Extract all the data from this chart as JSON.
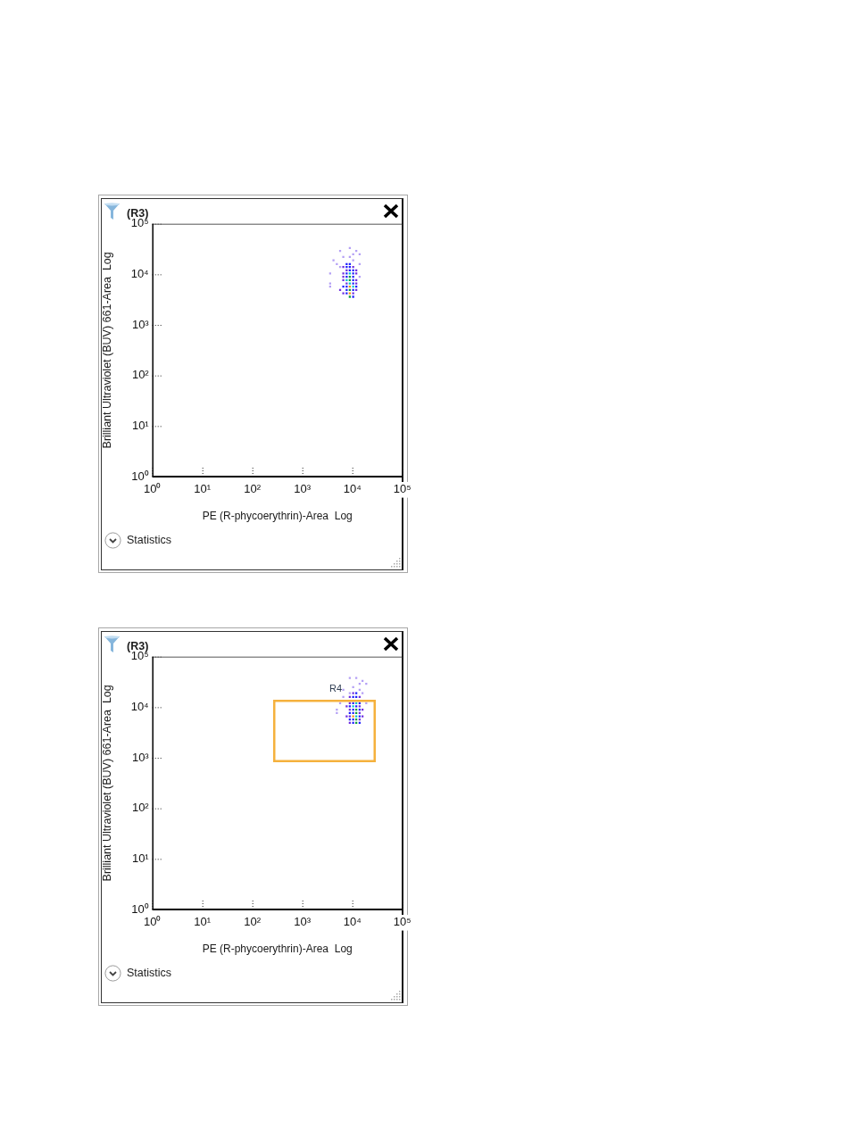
{
  "chart_data": [
    {
      "type": "scatter",
      "title": "(R3)",
      "xlabel": "PE (R-phycoerythrin)-Area  Log",
      "ylabel": "Brilliant Ultraviolet (BUV) 661-Area  Log",
      "log": "xy",
      "marker": "square",
      "xlim": [
        1,
        100000
      ],
      "ylim": [
        1,
        100000
      ],
      "xticks": [
        {
          "value": 1,
          "label": "10⁰"
        },
        {
          "value": 10,
          "label": "10¹"
        },
        {
          "value": 100,
          "label": "10²"
        },
        {
          "value": 1000,
          "label": "10³"
        },
        {
          "value": 10000,
          "label": "10⁴"
        },
        {
          "value": 100000,
          "label": "10⁵"
        }
      ],
      "yticks": [
        {
          "value": 1,
          "label": "10⁰"
        },
        {
          "value": 10,
          "label": "10¹"
        },
        {
          "value": 100,
          "label": "10²"
        },
        {
          "value": 1000,
          "label": "10³"
        },
        {
          "value": 10000,
          "label": "10⁴"
        },
        {
          "value": 100000,
          "label": "10⁵"
        }
      ],
      "annotations": [
        "Statistics"
      ],
      "series": [
        {
          "color": "#b4a0f5",
          "x": [
            8900,
            5700,
            12000,
            14000,
            10400,
            6600,
            8900,
            4200,
            10400,
            4900,
            14000,
            5700,
            3600,
            14000,
            3600,
            3600
          ],
          "values": [
            33000,
            29000,
            29000,
            25000,
            25000,
            22000,
            22000,
            19000,
            19000,
            16000,
            16000,
            14000,
            10400,
            8900,
            6600,
            5700
          ]
        },
        {
          "color": "#7030e0",
          "x": [
            6600,
            10400,
            7700,
            12000,
            6600,
            12000,
            6600,
            12000,
            6600,
            7700,
            12000,
            5700,
            10400,
            12000,
            6600
          ],
          "values": [
            14000,
            14000,
            12000,
            12000,
            10400,
            10400,
            8900,
            7700,
            7700,
            6600,
            6600,
            4900,
            4200,
            4900,
            4200
          ]
        },
        {
          "color": "#2020ff",
          "x": [
            7700,
            7700,
            7700,
            7700,
            7700,
            7700,
            7700,
            8900,
            8900,
            8900,
            10400,
            10400,
            10400,
            10400,
            10400,
            10400,
            10400,
            6600,
            12000
          ],
          "values": [
            16000,
            14000,
            10400,
            8900,
            5700,
            4900,
            4200,
            16000,
            14000,
            12000,
            12000,
            10400,
            8900,
            7700,
            6600,
            4900,
            3600,
            5700,
            5700
          ]
        },
        {
          "color": "#00c0d0",
          "x": [
            7700,
            8900,
            8900,
            10400
          ],
          "values": [
            7700,
            10400,
            6600,
            5700
          ]
        },
        {
          "color": "#10a040",
          "x": [
            8900,
            8900,
            8900,
            8900
          ],
          "values": [
            8900,
            7700,
            4900,
            3600
          ]
        },
        {
          "color": "#ff8c1a",
          "x": [
            8900,
            8900
          ],
          "values": [
            4200,
            5700
          ]
        }
      ]
    },
    {
      "type": "scatter",
      "title": "(R3)",
      "xlabel": "PE (R-phycoerythrin)-Area  Log",
      "ylabel": "Brilliant Ultraviolet (BUV) 661-Area  Log",
      "log": "xy",
      "marker": "square",
      "xlim": [
        1,
        100000
      ],
      "ylim": [
        1,
        100000
      ],
      "xticks": [
        {
          "value": 1,
          "label": "10⁰"
        },
        {
          "value": 10,
          "label": "10¹"
        },
        {
          "value": 100,
          "label": "10²"
        },
        {
          "value": 1000,
          "label": "10³"
        },
        {
          "value": 10000,
          "label": "10⁴"
        },
        {
          "value": 100000,
          "label": "10⁵"
        }
      ],
      "yticks": [
        {
          "value": 1,
          "label": "10⁰"
        },
        {
          "value": 10,
          "label": "10¹"
        },
        {
          "value": 100,
          "label": "10²"
        },
        {
          "value": 1000,
          "label": "10³"
        },
        {
          "value": 10000,
          "label": "10⁴"
        },
        {
          "value": 100000,
          "label": "10⁵"
        }
      ],
      "annotations": [
        "Statistics",
        "R4"
      ],
      "series": [
        {
          "color": "#b4a0f5",
          "x": [
            8900,
            12000,
            16000,
            19000,
            14000,
            6600,
            10400,
            14000,
            8900,
            16000,
            6600,
            5700,
            19000,
            4900,
            4900
          ],
          "values": [
            38000,
            38000,
            33000,
            29000,
            29000,
            22000,
            25000,
            22000,
            19000,
            19000,
            16000,
            12000,
            12000,
            8900,
            7700
          ]
        },
        {
          "color": "#7030e0",
          "x": [
            10400,
            14000,
            14000,
            14000,
            14000,
            8900,
            8900,
            8900,
            8900,
            8900,
            16000,
            16000,
            7700,
            7700
          ],
          "values": [
            19000,
            16000,
            10400,
            7700,
            5700,
            16000,
            12000,
            8900,
            6600,
            4900,
            8900,
            6600,
            10400,
            6600
          ]
        },
        {
          "color": "#2020ff",
          "x": [
            12000,
            12000,
            12000,
            10400,
            10400,
            10400,
            10400,
            10400,
            10400,
            14000,
            14000,
            14000,
            14000,
            8900,
            8900,
            8900
          ],
          "values": [
            19000,
            16000,
            10400,
            16000,
            12000,
            8900,
            7700,
            5700,
            4900,
            12000,
            8900,
            6600,
            4900,
            10400,
            7700,
            5700
          ]
        },
        {
          "color": "#00c0d0",
          "x": [
            12000,
            12000,
            10400
          ],
          "values": [
            12000,
            6600,
            10400
          ]
        },
        {
          "color": "#10a040",
          "x": [
            12000,
            12000,
            12000,
            12000
          ],
          "values": [
            8900,
            7700,
            5700,
            4900
          ]
        },
        {
          "color": "#ff8c1a",
          "x": [
            10400
          ],
          "values": [
            6600
          ]
        }
      ]
    }
  ]
}
